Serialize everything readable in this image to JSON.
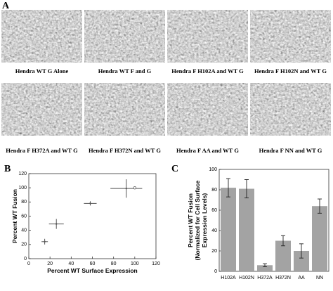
{
  "panel_labels": [
    "A",
    "B",
    "C"
  ],
  "micrograph_captions": [
    "Hendra WT G Alone",
    "Hendra WT F and G",
    "Hendra F H102A and WT G",
    "Hendra F H102N and WT G",
    "Hendra F H372A and WT G",
    "Hendra F H372N and WT G",
    "Hendra F AA and WT G",
    "Hendra F NN and WT G"
  ],
  "chart_data": [
    {
      "type": "scatter",
      "xlabel": "Percent WT Surface Expression",
      "ylabel": "Percent WT Fusion",
      "series": [
        {
          "color": "#555555",
          "x": [
            15,
            26,
            58,
            92
          ],
          "values": [
            24,
            49,
            78,
            99
          ],
          "x_errors": [
            3,
            7,
            6,
            15
          ],
          "y_errors": [
            4,
            7,
            3,
            13
          ]
        },
        {
          "color": "#555555",
          "x": [
            100
          ],
          "values": [
            100
          ]
        }
      ],
      "xlim": [
        0,
        120
      ],
      "xticks": [
        0,
        20,
        40,
        60,
        80,
        100,
        120
      ],
      "ylim": [
        0,
        120
      ],
      "yticks": [
        0,
        20,
        40,
        60,
        80,
        100,
        120
      ]
    },
    {
      "type": "bar",
      "ylabel": [
        "Percent WT Fusion",
        "(Normalized for Cell Surface",
        "Expression Levels)"
      ],
      "categories": [
        "H102A",
        "H102N",
        "H372A",
        "H372N",
        "AA",
        "NN"
      ],
      "values": [
        82,
        81,
        6,
        30,
        20,
        64
      ],
      "errors": [
        9,
        9,
        1.5,
        5,
        7,
        7
      ],
      "color": "#a3a3a3",
      "ylim": [
        0,
        100
      ],
      "yticks": [
        0,
        20,
        40,
        60,
        80,
        100
      ]
    }
  ]
}
